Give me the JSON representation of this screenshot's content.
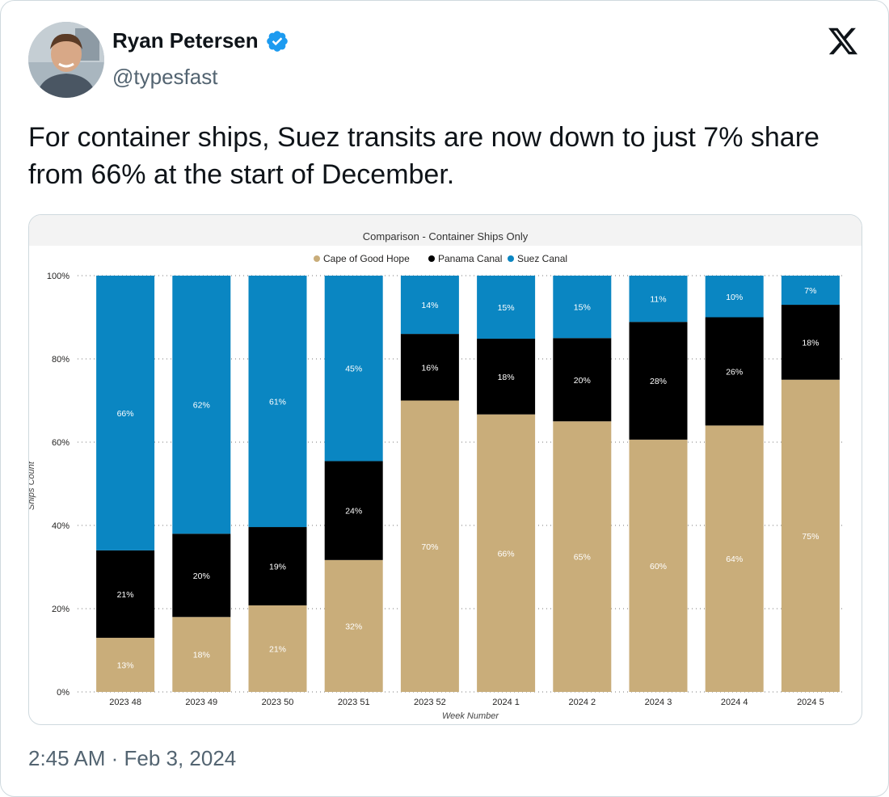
{
  "author": {
    "name": "Ryan Petersen",
    "handle": "@typesfast",
    "verified": true,
    "avatar_icon": "profile-photo"
  },
  "platform": {
    "logo_icon": "x-logo"
  },
  "tweet": {
    "text": "For container ships, Suez transits are now down to just 7% share from 66% at the start of December.",
    "timestamp": "2:45 AM · Feb 3, 2024"
  },
  "colors": {
    "cape": "#c9ad7a",
    "panama": "#000000",
    "suez": "#0a86c2",
    "verified": "#1d9bf0"
  },
  "chart_data": {
    "type": "bar",
    "stacked": true,
    "percent_stacked": true,
    "title": "Comparison - Container Ships Only",
    "xlabel": "Week Number",
    "ylabel": "Ships Count",
    "ylim": [
      0,
      100
    ],
    "y_ticks": [
      "0%",
      "20%",
      "40%",
      "60%",
      "80%",
      "100%"
    ],
    "grid": true,
    "legend_position": "top",
    "categories": [
      "2023 48",
      "2023 49",
      "2023 50",
      "2023 51",
      "2023 52",
      "2024 1",
      "2024 2",
      "2024 3",
      "2024 4",
      "2024 5"
    ],
    "series": [
      {
        "name": "Cape of Good Hope",
        "color": "#c9ad7a",
        "values": [
          13,
          18,
          21,
          32,
          70,
          66,
          65,
          60,
          64,
          75
        ],
        "labels": [
          "13%",
          "18%",
          "21%",
          "32%",
          "70%",
          "66%",
          "65%",
          "60%",
          "64%",
          "75%"
        ]
      },
      {
        "name": "Panama Canal",
        "color": "#000000",
        "values": [
          21,
          20,
          19,
          24,
          16,
          18,
          20,
          28,
          26,
          18
        ],
        "labels": [
          "21%",
          "20%",
          "19%",
          "24%",
          "16%",
          "18%",
          "20%",
          "28%",
          "26%",
          "18%"
        ]
      },
      {
        "name": "Suez Canal",
        "color": "#0a86c2",
        "values": [
          66,
          62,
          61,
          45,
          14,
          15,
          15,
          11,
          10,
          7
        ],
        "labels": [
          "66%",
          "62%",
          "61%",
          "45%",
          "14%",
          "15%",
          "15%",
          "11%",
          "10%",
          "7%"
        ]
      }
    ]
  }
}
